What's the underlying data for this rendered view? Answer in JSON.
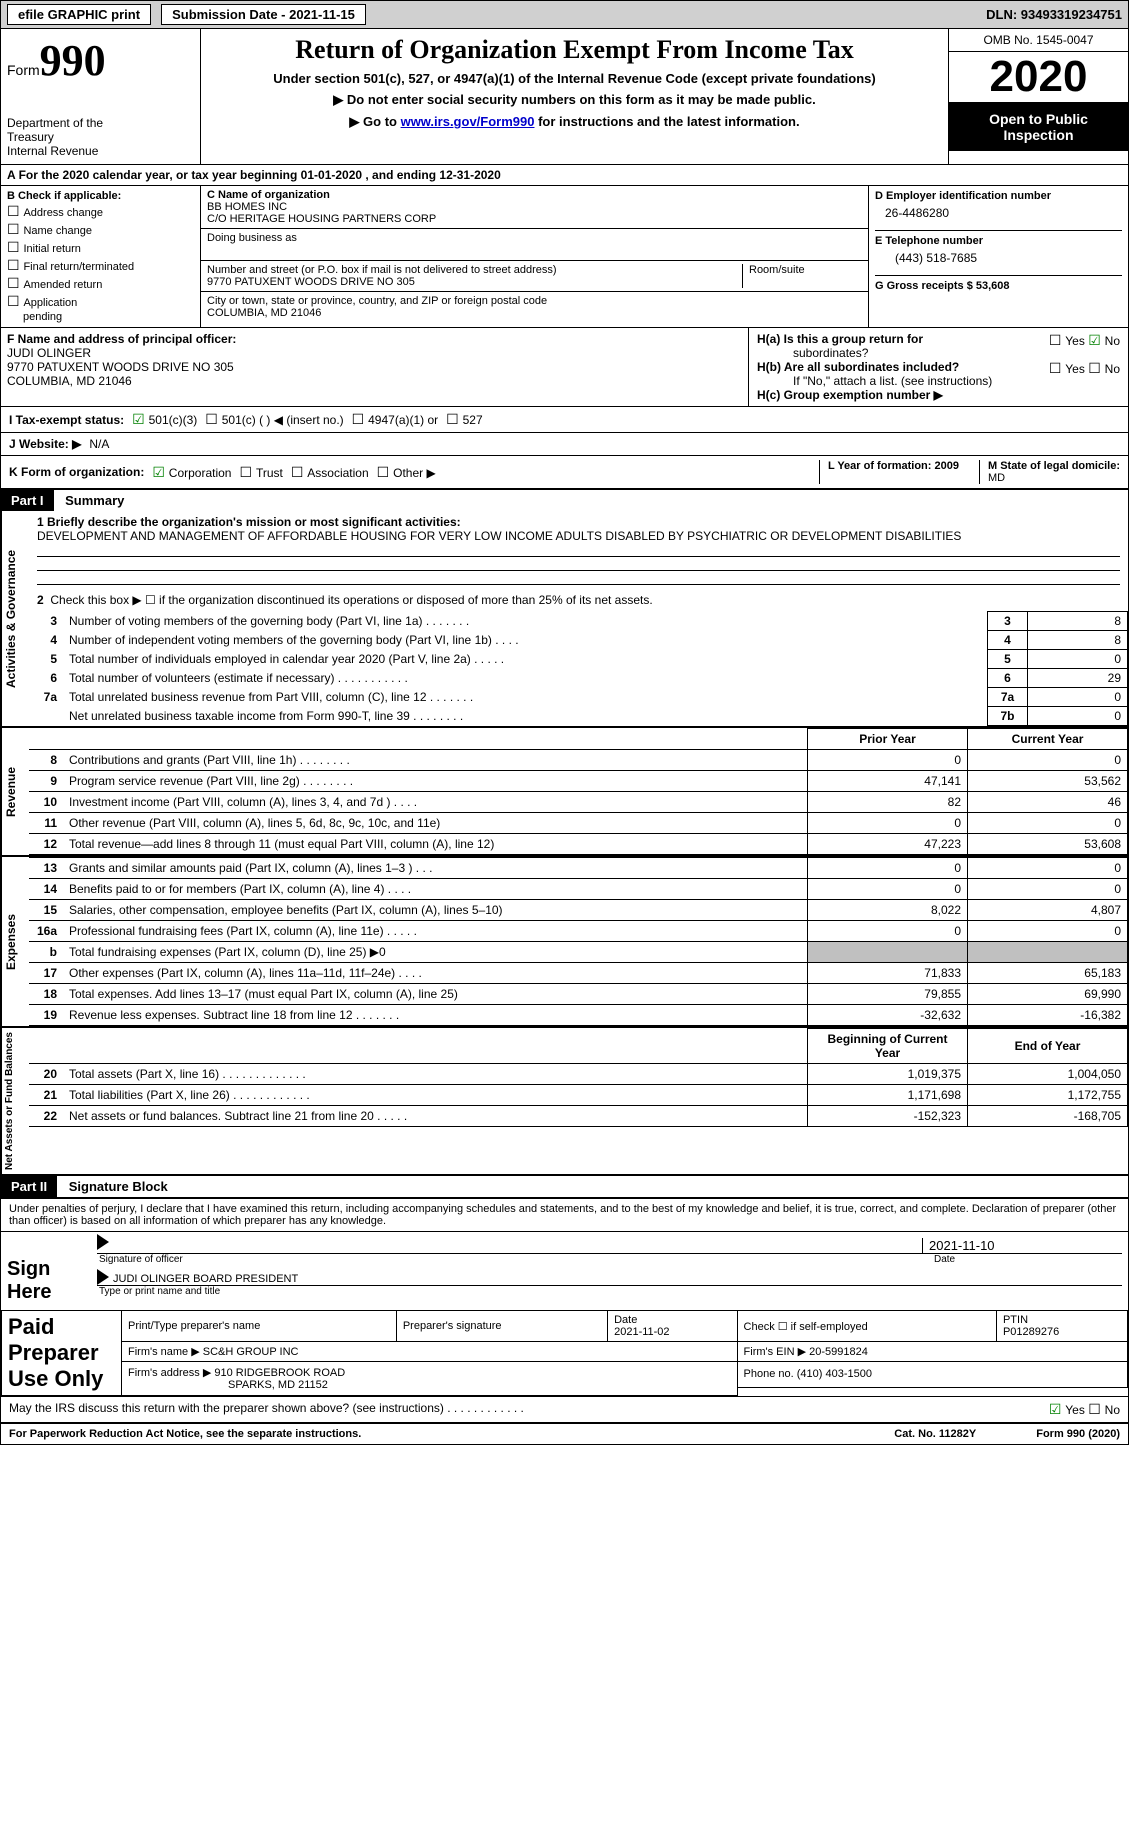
{
  "topbar": {
    "efile_label": "efile GRAPHIC print",
    "submission_label": "Submission Date - 2021-11-15",
    "dln_label": "DLN: 93493319234751"
  },
  "header": {
    "form_word": "Form",
    "form_num": "990",
    "dept1": "Department of the",
    "dept2": "Treasury",
    "dept3": "Internal Revenue",
    "title": "Return of Organization Exempt From Income Tax",
    "subtitle": "Under section 501(c), 527, or 4947(a)(1) of the Internal Revenue Code (except private foundations)",
    "note1": "▶ Do not enter social security numbers on this form as it may be made public.",
    "note2_pre": "▶ Go to ",
    "note2_link": "www.irs.gov/Form990",
    "note2_post": " for instructions and the latest information.",
    "omb": "OMB No. 1545-0047",
    "year": "2020",
    "open1": "Open to Public",
    "open2": "Inspection"
  },
  "line_a": "For the 2020 calendar year, or tax year beginning 01-01-2020   , and ending 12-31-2020",
  "col_b": {
    "label": "B Check if applicable:",
    "c1": "Address change",
    "c2": "Name change",
    "c3": "Initial return",
    "c4": "Final return/terminated",
    "c5": "Amended return",
    "c6": "Application",
    "c6b": "pending"
  },
  "col_c": {
    "name_lbl": "C Name of organization",
    "name1": "BB HOMES INC",
    "name2": "C/O HERITAGE HOUSING PARTNERS CORP",
    "dba_lbl": "Doing business as",
    "addr_lbl": "Number and street (or P.O. box if mail is not delivered to street address)",
    "addr": "9770 PATUXENT WOODS DRIVE NO 305",
    "room_lbl": "Room/suite",
    "city_lbl": "City or town, state or province, country, and ZIP or foreign postal code",
    "city": "COLUMBIA, MD  21046"
  },
  "col_d": {
    "d_lbl": "D Employer identification number",
    "d_val": "26-4486280",
    "e_lbl": "E Telephone number",
    "e_val": "(443) 518-7685",
    "g_lbl": "G Gross receipts $ 53,608"
  },
  "f_block": {
    "f_lbl": "F Name and address of principal officer:",
    "f1": "JUDI OLINGER",
    "f2": "9770 PATUXENT WOODS DRIVE NO 305",
    "f3": "COLUMBIA, MD  21046",
    "ha": "H(a)  Is this a group return for",
    "ha2": "subordinates?",
    "hb": "H(b)  Are all subordinates included?",
    "hnote": "If \"No,\" attach a list. (see instructions)",
    "hc": "H(c)  Group exemption number ▶",
    "yes": "Yes",
    "no": "No"
  },
  "status": {
    "i_lbl": "I   Tax-exempt status:",
    "s1": "501(c)(3)",
    "s2": "501(c) (  ) ◀ (insert no.)",
    "s3": "4947(a)(1) or",
    "s4": "527"
  },
  "website": {
    "j_lbl": "J   Website: ▶",
    "j_val": "N/A"
  },
  "korg": {
    "k_lbl": "K Form of organization:",
    "k1": "Corporation",
    "k2": "Trust",
    "k3": "Association",
    "k4": "Other ▶",
    "l_lbl": "L Year of formation: 2009",
    "m_lbl": "M State of legal domicile:",
    "m_val": "MD"
  },
  "part1": {
    "part": "Part I",
    "title": "Summary",
    "tab1": "Activities & Governance",
    "tab2": "Revenue",
    "tab3": "Expenses",
    "tab4": "Net Assets or Fund Balances",
    "line1": "1  Briefly describe the organization's mission or most significant activities:",
    "mission": "DEVELOPMENT AND MANAGEMENT OF AFFORDABLE HOUSING FOR VERY LOW INCOME ADULTS DISABLED BY PSYCHIATRIC OR DEVELOPMENT DISABILITIES",
    "line2": "Check this box ▶ ☐  if the organization discontinued its operations or disposed of more than 25% of its net assets.",
    "rows_gov": [
      {
        "n": "3",
        "t": "Number of voting members of the governing body (Part VI, line 1a)   .    .    .    .    .    .    .",
        "b": "3",
        "v": "8"
      },
      {
        "n": "4",
        "t": "Number of independent voting members of the governing body (Part VI, line 1b)   .    .    .    .",
        "b": "4",
        "v": "8"
      },
      {
        "n": "5",
        "t": "Total number of individuals employed in calendar year 2020 (Part V, line 2a)   .    .    .    .    .",
        "b": "5",
        "v": "0"
      },
      {
        "n": "6",
        "t": "Total number of volunteers (estimate if necessary)   .    .    .    .    .    .    .    .    .    .    .",
        "b": "6",
        "v": "29"
      },
      {
        "n": "7a",
        "t": "Total unrelated business revenue from Part VIII, column (C), line 12   .    .    .    .    .    .    .",
        "b": "7a",
        "v": "0"
      },
      {
        "n": "",
        "t": "Net unrelated business taxable income from Form 990-T, line 39   .    .    .    .    .    .    .    .",
        "b": "7b",
        "v": "0"
      }
    ],
    "col_prior": "Prior Year",
    "col_curr": "Current Year",
    "rows_rev": [
      {
        "n": "8",
        "t": "Contributions and grants (Part VIII, line 1h)   .    .    .    .    .    .    .    .",
        "p": "0",
        "c": "0"
      },
      {
        "n": "9",
        "t": "Program service revenue (Part VIII, line 2g)   .    .    .    .    .    .    .    .",
        "p": "47,141",
        "c": "53,562"
      },
      {
        "n": "10",
        "t": "Investment income (Part VIII, column (A), lines 3, 4, and 7d )   .    .    .    .",
        "p": "82",
        "c": "46"
      },
      {
        "n": "11",
        "t": "Other revenue (Part VIII, column (A), lines 5, 6d, 8c, 9c, 10c, and 11e)",
        "p": "0",
        "c": "0"
      },
      {
        "n": "12",
        "t": "Total revenue—add lines 8 through 11 (must equal Part VIII, column (A), line 12)",
        "p": "47,223",
        "c": "53,608"
      }
    ],
    "rows_exp": [
      {
        "n": "13",
        "t": "Grants and similar amounts paid (Part IX, column (A), lines 1–3 )   .    .    .",
        "p": "0",
        "c": "0"
      },
      {
        "n": "14",
        "t": "Benefits paid to or for members (Part IX, column (A), line 4)   .    .    .    .",
        "p": "0",
        "c": "0"
      },
      {
        "n": "15",
        "t": "Salaries, other compensation, employee benefits (Part IX, column (A), lines 5–10)",
        "p": "8,022",
        "c": "4,807"
      },
      {
        "n": "16a",
        "t": "Professional fundraising fees (Part IX, column (A), line 11e)   .    .    .    .    .",
        "p": "0",
        "c": "0"
      },
      {
        "n": "b",
        "t": "Total fundraising expenses (Part IX, column (D), line 25) ▶0",
        "p": "",
        "c": "",
        "shade": true
      },
      {
        "n": "17",
        "t": "Other expenses (Part IX, column (A), lines 11a–11d, 11f–24e)   .    .    .    .",
        "p": "71,833",
        "c": "65,183"
      },
      {
        "n": "18",
        "t": "Total expenses. Add lines 13–17 (must equal Part IX, column (A), line 25)",
        "p": "79,855",
        "c": "69,990"
      },
      {
        "n": "19",
        "t": "Revenue less expenses. Subtract line 18 from line 12   .    .    .    .    .    .    .",
        "p": "-32,632",
        "c": "-16,382"
      }
    ],
    "col_begin": "Beginning of Current Year",
    "col_end": "End of Year",
    "rows_net": [
      {
        "n": "20",
        "t": "Total assets (Part X, line 16)   .    .    .    .    .    .    .    .    .    .    .    .    .",
        "p": "1,019,375",
        "c": "1,004,050"
      },
      {
        "n": "21",
        "t": "Total liabilities (Part X, line 26)   .    .    .    .    .    .    .    .    .    .    .    .",
        "p": "1,171,698",
        "c": "1,172,755"
      },
      {
        "n": "22",
        "t": "Net assets or fund balances. Subtract line 21 from line 20   .    .    .    .    .",
        "p": "-152,323",
        "c": "-168,705"
      }
    ]
  },
  "part2": {
    "part": "Part II",
    "title": "Signature Block",
    "decl": "Under penalties of perjury, I declare that I have examined this return, including accompanying schedules and statements, and to the best of my knowledge and belief, it is true, correct, and complete. Declaration of preparer (other than officer) is based on all information of which preparer has any knowledge.",
    "sign_lbl": "Sign Here",
    "sig_off": "Signature of officer",
    "sig_date": "2021-11-10",
    "sig_date_lbl": "Date",
    "sig_name": "JUDI OLINGER  BOARD PRESIDENT",
    "sig_type": "Type or print name and title",
    "prep_lbl": "Paid Preparer Use Only",
    "p_name_lbl": "Print/Type preparer's name",
    "p_sig_lbl": "Preparer's signature",
    "p_date_lbl": "Date",
    "p_date": "2021-11-02",
    "p_check": "Check ☐ if self-employed",
    "p_ptin_lbl": "PTIN",
    "p_ptin": "P01289276",
    "firm_name_lbl": "Firm's name    ▶",
    "firm_name": "SC&H GROUP INC",
    "firm_ein_lbl": "Firm's EIN ▶",
    "firm_ein": "20-5991824",
    "firm_addr_lbl": "Firm's address ▶",
    "firm_addr1": "910 RIDGEBROOK ROAD",
    "firm_addr2": "SPARKS, MD  21152",
    "phone_lbl": "Phone no.",
    "phone": "(410) 403-1500",
    "discuss": "May the IRS discuss this return with the preparer shown above? (see instructions)   .    .    .    .    .    .    .    .    .    .    .    .",
    "yes": "Yes",
    "no": "No"
  },
  "footer": {
    "left": "For Paperwork Reduction Act Notice, see the separate instructions.",
    "mid": "Cat. No. 11282Y",
    "right": "Form 990 (2020)"
  }
}
